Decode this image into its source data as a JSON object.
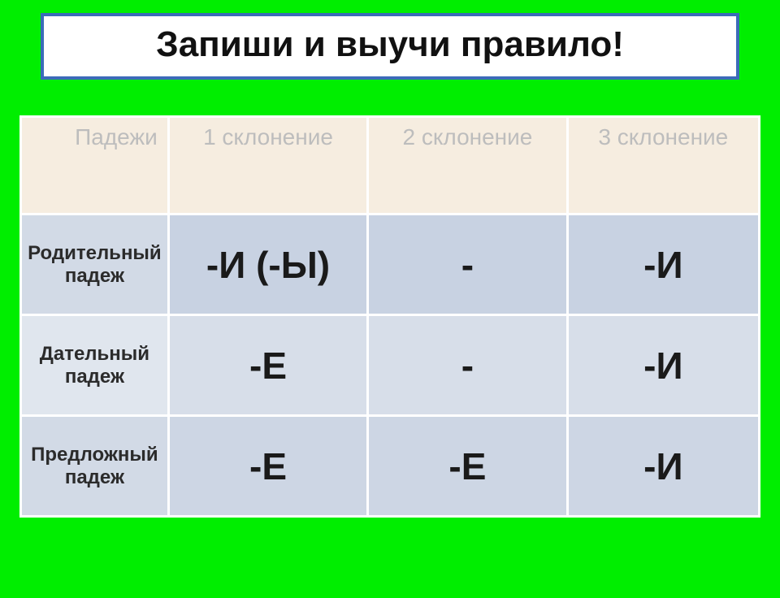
{
  "title": "Запиши и выучи правило!",
  "colors": {
    "page_bg": "#00ee00",
    "title_bg": "#ffffff",
    "title_border": "#3b6bb8",
    "title_text": "#111111",
    "header_bg": "#f6ede0",
    "header_text": "#bdbdbd",
    "row_a_label_bg": "#d2dae6",
    "row_a_cell_bg": "#c8d2e2",
    "row_b_label_bg": "#e0e6ee",
    "row_b_cell_bg": "#d7dee9",
    "row_c_label_bg": "#d2dae6",
    "row_c_cell_bg": "#cdd6e4",
    "cell_border": "#ffffff",
    "cell_text": "#1a1a1a"
  },
  "typography": {
    "title_fontsize_pt": 33,
    "header_fontsize_pt": 21,
    "row_label_fontsize_pt": 18,
    "cell_fontsize_pt": 35,
    "font_family": "Arial"
  },
  "table": {
    "type": "table",
    "column_widths_pct": [
      20,
      27,
      27,
      26
    ],
    "columns": [
      "Падежи",
      "1 склонение",
      "2 склонение",
      "3 склонение"
    ],
    "rows": [
      {
        "label": "Родительный падеж",
        "cells": [
          "-И (-Ы)",
          "-",
          "-И"
        ]
      },
      {
        "label": "Дательный падеж",
        "cells": [
          "-Е",
          "-",
          "-И"
        ]
      },
      {
        "label": "Предложный падеж",
        "cells": [
          "-Е",
          "-Е",
          "-И"
        ]
      }
    ]
  }
}
